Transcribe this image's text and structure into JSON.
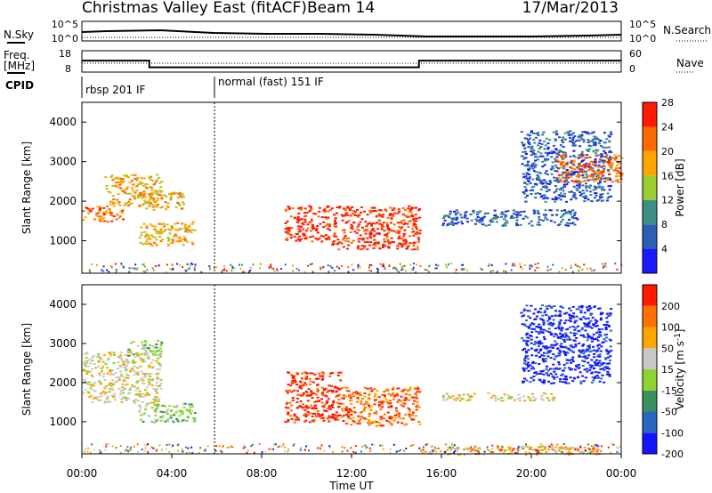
{
  "header": {
    "title": "Christmas Valley East (fitACF)",
    "beam": "Beam 14",
    "date": "17/Mar/2013"
  },
  "noise_panel": {
    "left_label": "N.Sky",
    "right_label": "N.Search",
    "left_ticks": [
      "10^5",
      "10^0"
    ],
    "right_ticks": [
      "10^5",
      "10^0"
    ]
  },
  "freq_panel": {
    "left_label_1": "Freq.",
    "left_label_2": "[MHz]",
    "right_label": "Nave",
    "left_ticks": [
      "18",
      "8"
    ],
    "right_ticks": [
      "60",
      "0"
    ],
    "freq_steps_ut_hours": [
      {
        "start": 0,
        "end": 3,
        "freq": 13.5
      },
      {
        "start": 3,
        "end": 15,
        "freq": 9.3
      },
      {
        "start": 15,
        "end": 24,
        "freq": 13.5
      }
    ]
  },
  "cpid": {
    "label": "CPID",
    "modes": [
      {
        "text": "rbsp 201 IF",
        "start": 0,
        "end": 6
      },
      {
        "text": "normal (fast) 151 IF",
        "start": 6,
        "end": 24
      }
    ]
  },
  "chart_data": [
    {
      "type": "heatmap",
      "quantity": "Power",
      "ylabel": "Slant Range [km]",
      "ylim": [
        180,
        4500
      ],
      "yticks": [
        "1000",
        "2000",
        "3000",
        "4000"
      ],
      "colorbar_label": "Power [dB]",
      "colorbar_ticks": [
        "4",
        "8",
        "12",
        "16",
        "20",
        "24",
        "28"
      ],
      "colorbar_colors": [
        "#1a1aff",
        "#2c5fb4",
        "#3c8f82",
        "#9acd32",
        "#ffa500",
        "#ff6a00",
        "#ff1a00"
      ],
      "echo_regions": [
        {
          "t": [
            0.0,
            1.8
          ],
          "r": [
            1500,
            1900
          ],
          "level": 5
        },
        {
          "t": [
            1.0,
            3.5
          ],
          "r": [
            1900,
            2700
          ],
          "level": 4
        },
        {
          "t": [
            2.5,
            4.5
          ],
          "r": [
            1800,
            2300
          ],
          "level": 4
        },
        {
          "t": [
            2.5,
            5.0
          ],
          "r": [
            900,
            1500
          ],
          "level": 4
        },
        {
          "t": [
            9.0,
            11.0
          ],
          "r": [
            1000,
            1900
          ],
          "level": 6
        },
        {
          "t": [
            11.0,
            15.0
          ],
          "r": [
            800,
            1900
          ],
          "level": 6
        },
        {
          "t": [
            16.0,
            22.0
          ],
          "r": [
            1400,
            1800
          ],
          "level": 1
        },
        {
          "t": [
            19.5,
            23.5
          ],
          "r": [
            2000,
            3800
          ],
          "level": 1
        },
        {
          "t": [
            21.0,
            24.0
          ],
          "r": [
            2500,
            3200
          ],
          "level": 5
        }
      ]
    },
    {
      "type": "heatmap",
      "quantity": "Velocity",
      "ylabel": "Slant Range [km]",
      "xlabel": "Time UT",
      "ylim": [
        180,
        4500
      ],
      "yticks": [
        "1000",
        "2000",
        "3000",
        "4000"
      ],
      "xticks": [
        "00:00",
        "04:00",
        "08:00",
        "12:00",
        "16:00",
        "20:00",
        "00:00"
      ],
      "colorbar_label": "Velocity [m s",
      "colorbar_label_sup": "-1",
      "colorbar_label_end": "]",
      "colorbar_ticks": [
        "200",
        "100",
        "50",
        "15",
        "-15",
        "-50",
        "-100",
        "-200"
      ],
      "colorbar_colors": [
        "#1414ff",
        "#2a66c0",
        "#39905e",
        "#8fd42e",
        "#c8c8c8",
        "#ffa500",
        "#ff7000",
        "#ff1a00"
      ],
      "echo_regions": [
        {
          "t": [
            0.0,
            3.5
          ],
          "r": [
            1500,
            2800
          ],
          "level": 4
        },
        {
          "t": [
            2.0,
            3.5
          ],
          "r": [
            2700,
            3100
          ],
          "level": 3
        },
        {
          "t": [
            2.5,
            5.0
          ],
          "r": [
            1000,
            1500
          ],
          "level": 3
        },
        {
          "t": [
            9.0,
            11.5
          ],
          "r": [
            1000,
            2300
          ],
          "level": 7
        },
        {
          "t": [
            11.5,
            15.0
          ],
          "r": [
            900,
            1900
          ],
          "level": 6
        },
        {
          "t": [
            15.0,
            23.0
          ],
          "r": [
            180,
            400
          ],
          "level": 5
        },
        {
          "t": [
            16.0,
            21.0
          ],
          "r": [
            1550,
            1750
          ],
          "level": 4
        },
        {
          "t": [
            19.5,
            23.5
          ],
          "r": [
            2000,
            4000
          ],
          "level": 0
        }
      ]
    }
  ]
}
